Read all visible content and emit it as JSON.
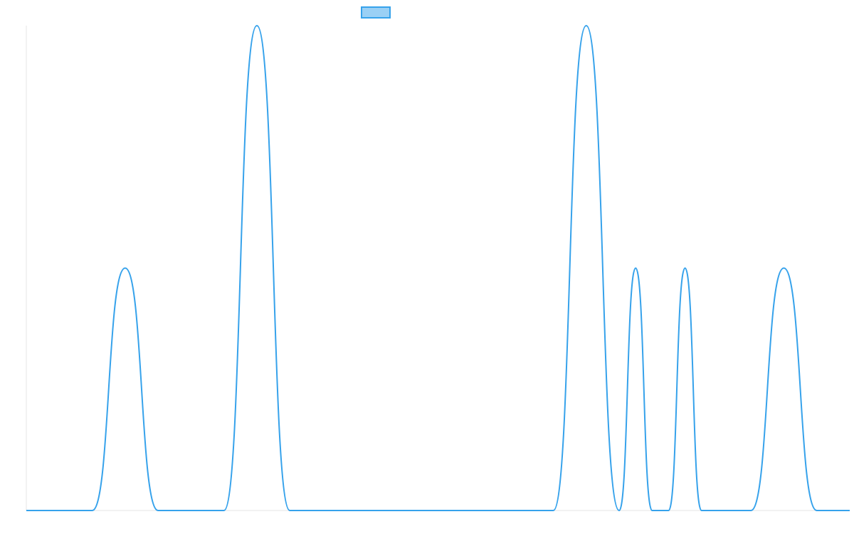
{
  "chart_data": {
    "type": "line",
    "title": "",
    "xlabel": "",
    "ylabel": "",
    "x": [
      0,
      4,
      6,
      8,
      12,
      14,
      16,
      32,
      34,
      36,
      37,
      38,
      39,
      40,
      41,
      42,
      44,
      46,
      48,
      50
    ],
    "series": [
      {
        "name": "",
        "values": [
          0,
          0,
          0.5,
          0,
          0,
          1,
          0,
          0,
          1,
          0,
          0.5,
          0,
          0,
          0.5,
          0,
          0,
          0,
          0.5,
          0,
          0
        ]
      }
    ],
    "xlim": [
      0,
      50
    ],
    "ylim": [
      0,
      1
    ],
    "grid": false,
    "legend": "top-center",
    "colors": {
      "line": "#36a2eb",
      "legend_fill": "#9ad0f5",
      "axis": "#e5e5e5"
    }
  }
}
